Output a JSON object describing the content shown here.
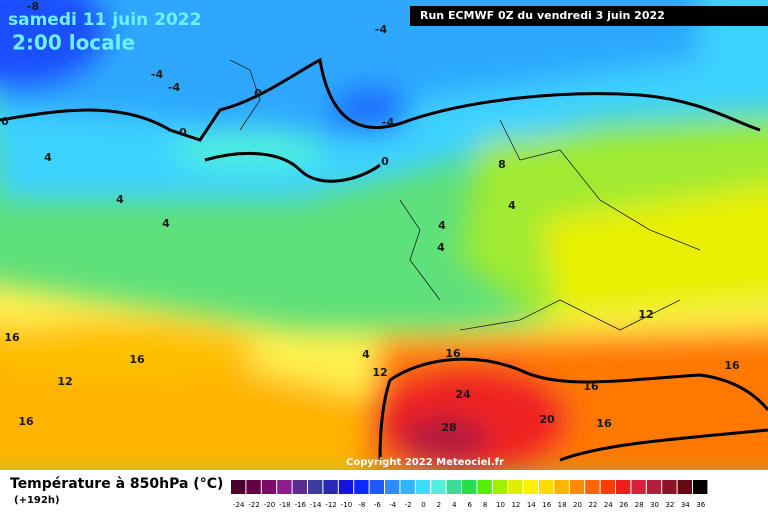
{
  "header": {
    "date": "samedi 11 juin 2022",
    "time": "2:00 locale",
    "run": "Run ECMWF 0Z du vendredi 3 juin 2022"
  },
  "map": {
    "contour_labels": [
      "-8",
      "-4",
      "-4",
      "-4",
      "0",
      "-4",
      "0",
      "0",
      "0",
      "4",
      "8",
      "4",
      "4",
      "4",
      "4",
      "4",
      "16",
      "16",
      "12",
      "16",
      "12",
      "16",
      "4",
      "12",
      "24",
      "16",
      "16",
      "20",
      "28",
      "16"
    ],
    "copyright": "Copyright 2022 Meteociel.fr"
  },
  "footer": {
    "title": "Température à 850hPa (°C)",
    "lead": "(+192h)"
  },
  "scale": {
    "ticks": [
      -24,
      -22,
      -20,
      -18,
      -16,
      -14,
      -12,
      -10,
      -8,
      -6,
      -4,
      -2,
      0,
      2,
      4,
      6,
      8,
      10,
      12,
      14,
      16,
      18,
      20,
      22,
      24,
      26,
      28,
      30,
      32,
      34,
      36
    ],
    "colors": [
      "#4b0030",
      "#640046",
      "#7d0a69",
      "#8c1e8c",
      "#5a2d8c",
      "#3c3ca0",
      "#2828b4",
      "#1414dc",
      "#0a28ff",
      "#1e5aff",
      "#2d8cff",
      "#32b4ff",
      "#3cdcff",
      "#50f0dc",
      "#3cdc96",
      "#28dc50",
      "#50f000",
      "#a0f000",
      "#dcf000",
      "#fff000",
      "#ffdc00",
      "#ffb400",
      "#ff8c00",
      "#ff6400",
      "#ff3c00",
      "#f01e1e",
      "#dc1e3c",
      "#b41e3c",
      "#8c1428",
      "#640a14",
      "#000000"
    ]
  }
}
